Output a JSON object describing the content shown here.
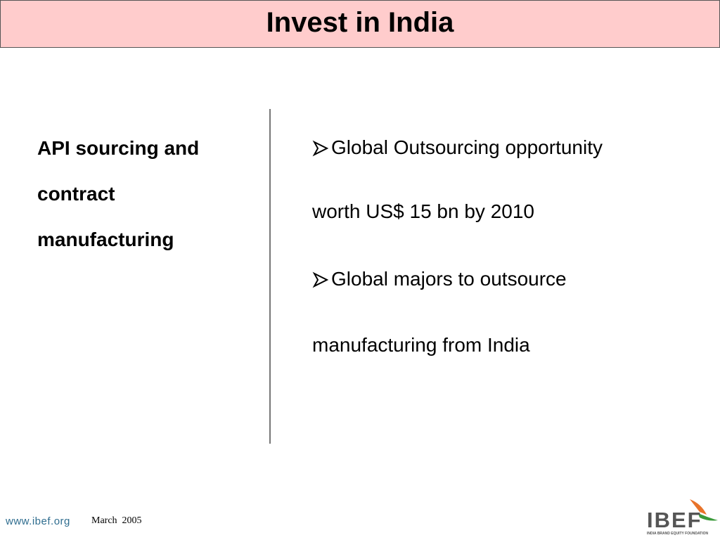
{
  "header": {
    "title": "Invest in India"
  },
  "left": {
    "lines": [
      "API sourcing and",
      "contract",
      "manufacturing"
    ]
  },
  "bullets": [
    {
      "lines": [
        "Global Outsourcing opportunity",
        "worth US$ 15 bn by 2010"
      ]
    },
    {
      "lines": [
        "Global majors to outsource",
        "manufacturing from India"
      ]
    }
  ],
  "footer": {
    "url": "www.ibef.org",
    "date": "March  2005",
    "logo": "IBEF",
    "logo_sub": "INDIA BRAND EQUITY FOUNDATION"
  }
}
